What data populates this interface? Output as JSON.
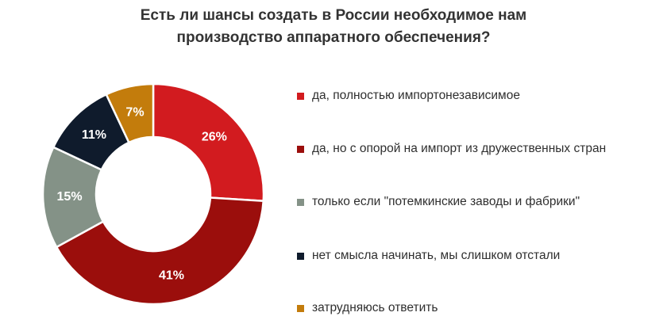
{
  "chart_data": {
    "type": "pie",
    "title_lines": [
      "Есть ли шансы создать в России необходимое нам",
      "производство аппаратного обеспечения?"
    ],
    "categories": [
      "да, полностью импортонезависимое",
      "да, но с опорой на импорт из дружественных стран",
      "только если \"потемкинские заводы и фабрики\"",
      "нет смысла начинать, мы слишком отстали",
      "затрудняюсь ответить"
    ],
    "values": [
      26,
      41,
      15,
      11,
      7
    ],
    "value_labels": [
      "26%",
      "41%",
      "15%",
      "11%",
      "7%"
    ],
    "colors": [
      "#d21b1f",
      "#9b0e0c",
      "#849287",
      "#0f1b2c",
      "#c37c0c"
    ],
    "donut": true,
    "legend_position": "right"
  }
}
